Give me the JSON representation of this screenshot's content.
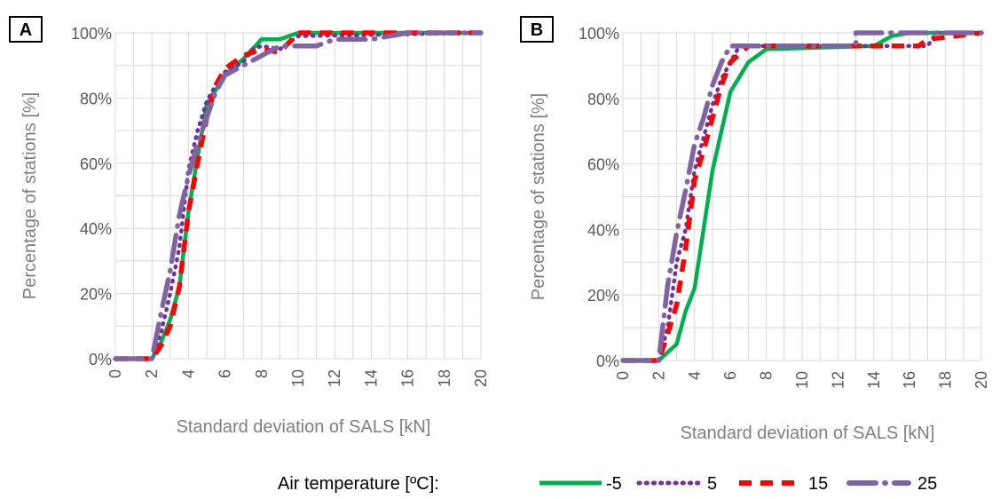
{
  "chart_data": [
    {
      "type": "line",
      "panel_label": "A",
      "xlabel": "Standard deviation  of SALS [kN]",
      "ylabel": "Percentage  of stations [%]",
      "xlim": [
        0,
        20
      ],
      "ylim": [
        0,
        100
      ],
      "x_ticks": [
        "0",
        "2",
        "4",
        "6",
        "8",
        "10",
        "12",
        "14",
        "16",
        "18",
        "20"
      ],
      "y_ticks": [
        "0%",
        "20%",
        "40%",
        "60%",
        "80%",
        "100%"
      ],
      "grid": true,
      "series": [
        {
          "name": "-5",
          "color": "#00b050",
          "style": "solid",
          "points": [
            [
              0,
              0
            ],
            [
              2,
              0
            ],
            [
              2.5,
              5
            ],
            [
              3,
              12
            ],
            [
              3.5,
              22
            ],
            [
              4,
              45
            ],
            [
              4.5,
              62
            ],
            [
              5,
              78
            ],
            [
              6,
              87
            ],
            [
              7,
              92
            ],
            [
              8,
              98
            ],
            [
              9,
              98
            ],
            [
              10,
              100
            ],
            [
              20,
              100
            ]
          ]
        },
        {
          "name": "5",
          "color": "#7030a0",
          "style": "dotted",
          "points": [
            [
              0,
              0
            ],
            [
              2,
              0
            ],
            [
              2.5,
              8
            ],
            [
              3,
              20
            ],
            [
              3.5,
              34
            ],
            [
              4,
              58
            ],
            [
              4.5,
              70
            ],
            [
              5,
              79
            ],
            [
              5.5,
              84
            ],
            [
              6,
              88
            ],
            [
              7,
              91
            ],
            [
              7.5,
              95
            ],
            [
              8,
              96
            ],
            [
              9,
              95
            ],
            [
              10,
              99
            ],
            [
              20,
              100
            ]
          ]
        },
        {
          "name": "15",
          "color": "#ff0000",
          "style": "dashed",
          "points": [
            [
              0,
              0
            ],
            [
              2,
              0
            ],
            [
              2.5,
              4
            ],
            [
              3,
              10
            ],
            [
              3.5,
              22
            ],
            [
              4,
              45
            ],
            [
              4.5,
              60
            ],
            [
              5,
              74
            ],
            [
              5.5,
              84
            ],
            [
              6,
              89
            ],
            [
              7,
              93
            ],
            [
              8,
              95
            ],
            [
              9,
              94
            ],
            [
              10,
              100
            ],
            [
              20,
              100
            ]
          ]
        },
        {
          "name": "25",
          "color": "#8064a2",
          "style": "longdash",
          "points": [
            [
              0,
              0
            ],
            [
              2,
              0
            ],
            [
              2.5,
              14
            ],
            [
              3,
              27
            ],
            [
              3.5,
              44
            ],
            [
              4,
              56
            ],
            [
              4.5,
              66
            ],
            [
              5,
              74
            ],
            [
              5.5,
              82
            ],
            [
              6,
              87
            ],
            [
              7,
              90
            ],
            [
              8,
              93
            ],
            [
              9,
              96
            ],
            [
              10,
              96
            ],
            [
              11,
              96
            ],
            [
              12,
              98
            ],
            [
              14,
              98
            ],
            [
              16,
              100
            ],
            [
              20,
              100
            ]
          ]
        }
      ]
    },
    {
      "type": "line",
      "panel_label": "B",
      "xlabel": "Standard deviation  of SALS [kN]",
      "ylabel": "Percentage  of stations [%]",
      "xlim": [
        0,
        20
      ],
      "ylim": [
        0,
        100
      ],
      "x_ticks": [
        "0",
        "2",
        "4",
        "6",
        "8",
        "10",
        "12",
        "14",
        "16",
        "18",
        "20"
      ],
      "y_ticks": [
        "0%",
        "20%",
        "40%",
        "60%",
        "80%",
        "100%"
      ],
      "grid": true,
      "series": [
        {
          "name": "-5",
          "color": "#00b050",
          "style": "solid",
          "points": [
            [
              0,
              0
            ],
            [
              2,
              0
            ],
            [
              3,
              5
            ],
            [
              3.5,
              15
            ],
            [
              4,
              22
            ],
            [
              4.5,
              40
            ],
            [
              5,
              58
            ],
            [
              5.5,
              70
            ],
            [
              6,
              82
            ],
            [
              7,
              91
            ],
            [
              8,
              95
            ],
            [
              14,
              96
            ],
            [
              15,
              99
            ],
            [
              16,
              100
            ],
            [
              20,
              100
            ]
          ]
        },
        {
          "name": "5",
          "color": "#7030a0",
          "style": "dotted",
          "points": [
            [
              0,
              0
            ],
            [
              2,
              0
            ],
            [
              2.5,
              10
            ],
            [
              3,
              30
            ],
            [
              3.5,
              40
            ],
            [
              4,
              58
            ],
            [
              4.5,
              68
            ],
            [
              5,
              78
            ],
            [
              5.5,
              86
            ],
            [
              6,
              91
            ],
            [
              6.5,
              96
            ],
            [
              17,
              96
            ],
            [
              17.5,
              100
            ],
            [
              20,
              100
            ]
          ]
        },
        {
          "name": "15",
          "color": "#ff0000",
          "style": "dashed",
          "points": [
            [
              0,
              0
            ],
            [
              2,
              0
            ],
            [
              2.5,
              8
            ],
            [
              3,
              17
            ],
            [
              3.5,
              34
            ],
            [
              4,
              55
            ],
            [
              4.5,
              64
            ],
            [
              5,
              74
            ],
            [
              5.5,
              84
            ],
            [
              6,
              91
            ],
            [
              7,
              96
            ],
            [
              16.5,
              96
            ],
            [
              17,
              98
            ],
            [
              20,
              100
            ]
          ]
        },
        {
          "name": "25",
          "color": "#8064a2",
          "style": "longdash",
          "points": [
            [
              0,
              0
            ],
            [
              2,
              0
            ],
            [
              2.5,
              23
            ],
            [
              3,
              39
            ],
            [
              3.5,
              52
            ],
            [
              4,
              66
            ],
            [
              4.5,
              74
            ],
            [
              5,
              84
            ],
            [
              5.5,
              91
            ],
            [
              6,
              96
            ],
            [
              13,
              96
            ],
            [
              13,
              100
            ],
            [
              20,
              100
            ]
          ]
        }
      ]
    }
  ],
  "legend": {
    "title": "Air temperature [ºC]:",
    "entries": [
      "-5",
      "5",
      "15",
      "25"
    ]
  }
}
